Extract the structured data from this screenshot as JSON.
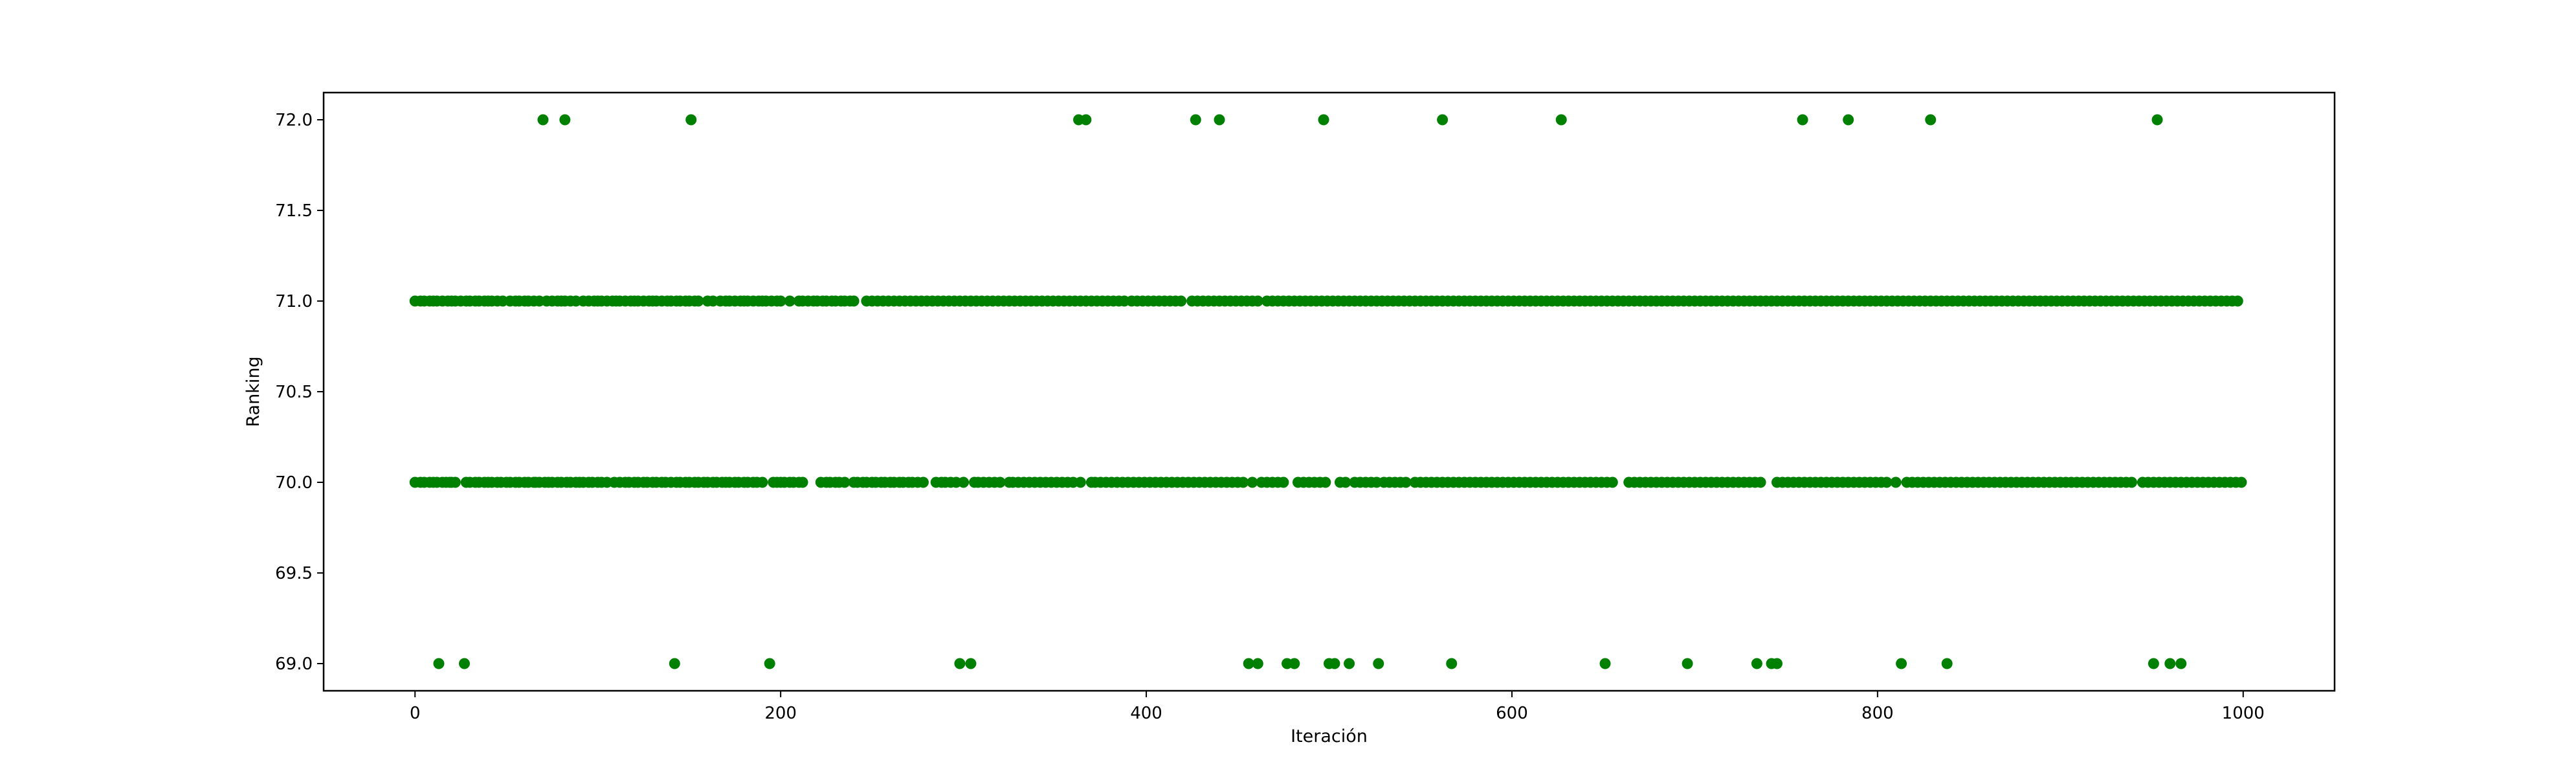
{
  "chart_data": {
    "type": "scatter",
    "title": "",
    "xlabel": "Iteración",
    "ylabel": "Ranking",
    "xlim": [
      -50,
      1050
    ],
    "ylim": [
      68.85,
      72.15
    ],
    "xticks": [
      0,
      200,
      400,
      600,
      800,
      1000
    ],
    "yticks": [
      69.0,
      69.5,
      70.0,
      70.5,
      71.0,
      71.5,
      72.0
    ],
    "ytick_labels": [
      "69.0",
      "69.5",
      "70.0",
      "70.5",
      "71.0",
      "71.5",
      "72.0"
    ],
    "grid": false,
    "marker_color": "#008000",
    "y_levels": [
      69,
      70,
      71,
      72
    ],
    "points": {
      "72": [
        70,
        82,
        151,
        363,
        367,
        427,
        440,
        497,
        562,
        627,
        759,
        784,
        829,
        953
      ],
      "69": [
        13,
        27,
        142,
        194,
        298,
        304,
        456,
        461,
        477,
        481,
        500,
        503,
        511,
        527,
        567,
        651,
        696,
        734,
        742,
        745,
        813,
        838,
        951,
        960,
        966
      ],
      "70": [
        0,
        3,
        5,
        8,
        10,
        12,
        15,
        17,
        19,
        20,
        22,
        28,
        30,
        33,
        35,
        38,
        40,
        42,
        45,
        47,
        50,
        52,
        55,
        57,
        60,
        62,
        65,
        66,
        68,
        71,
        73,
        75,
        78,
        80,
        83,
        85,
        88,
        90,
        92,
        95,
        97,
        100,
        102,
        105,
        109,
        112,
        115,
        117,
        120,
        122,
        125,
        127,
        130,
        132,
        135,
        137,
        140,
        143,
        145,
        148,
        150,
        153,
        155,
        158,
        160,
        163,
        165,
        168,
        170,
        172,
        175,
        177,
        180,
        182,
        185,
        187,
        190,
        196,
        198,
        200,
        202,
        205,
        207,
        210,
        212,
        222,
        225,
        227,
        230,
        232,
        235,
        240,
        242,
        245,
        247,
        250,
        252,
        255,
        257,
        260,
        262,
        265,
        267,
        270,
        272,
        275,
        278,
        285,
        288,
        290,
        293,
        296,
        300,
        306,
        308,
        311,
        314,
        317,
        320,
        325,
        327,
        330,
        333,
        336,
        339,
        342,
        345,
        348,
        351,
        354,
        357,
        360,
        364,
        370,
        372,
        375,
        378,
        381,
        384,
        387,
        390,
        393,
        396,
        399,
        402,
        405,
        408,
        411,
        414,
        417,
        420,
        423,
        426,
        429,
        432,
        435,
        438,
        441,
        444,
        447,
        450,
        453,
        458,
        463,
        466,
        469,
        472,
        475,
        483,
        486,
        489,
        492,
        495,
        498,
        506,
        509,
        514,
        517,
        520,
        523,
        526,
        530,
        533,
        536,
        539,
        542,
        547,
        550,
        553,
        556,
        559,
        562,
        565,
        568,
        571,
        574,
        577,
        580,
        583,
        586,
        589,
        592,
        595,
        598,
        601,
        604,
        607,
        610,
        613,
        616,
        619,
        622,
        625,
        628,
        631,
        634,
        637,
        640,
        643,
        646,
        649,
        652,
        655,
        664,
        667,
        670,
        673,
        676,
        679,
        682,
        685,
        688,
        691,
        694,
        697,
        700,
        703,
        706,
        709,
        712,
        715,
        718,
        721,
        724,
        727,
        730,
        733,
        736,
        745,
        748,
        751,
        754,
        757,
        760,
        763,
        766,
        769,
        772,
        775,
        778,
        781,
        784,
        787,
        790,
        793,
        796,
        799,
        802,
        805,
        810,
        816,
        819,
        822,
        825,
        828,
        831,
        834,
        837,
        840,
        843,
        846,
        849,
        852,
        855,
        858,
        861,
        864,
        867,
        870,
        873,
        876,
        879,
        882,
        885,
        888,
        891,
        894,
        897,
        900,
        903,
        906,
        909,
        912,
        915,
        918,
        921,
        924,
        927,
        930,
        933,
        936,
        939,
        945,
        948,
        951,
        954,
        957,
        960,
        963,
        966,
        969,
        972,
        975,
        978,
        981,
        984,
        987,
        990,
        993,
        996,
        999
      ],
      "71": [
        0,
        3,
        5,
        8,
        10,
        12,
        15,
        18,
        20,
        22,
        25,
        28,
        30,
        33,
        35,
        38,
        40,
        42,
        45,
        48,
        52,
        55,
        57,
        60,
        62,
        65,
        68,
        72,
        75,
        78,
        80,
        82,
        85,
        88,
        92,
        95,
        98,
        100,
        102,
        105,
        108,
        110,
        112,
        115,
        118,
        120,
        122,
        125,
        128,
        130,
        132,
        135,
        138,
        140,
        143,
        145,
        148,
        150,
        153,
        155,
        160,
        163,
        167,
        170,
        172,
        175,
        178,
        180,
        182,
        185,
        188,
        190,
        192,
        195,
        198,
        200,
        205,
        210,
        212,
        215,
        218,
        220,
        223,
        225,
        228,
        230,
        233,
        235,
        238,
        240,
        247,
        250,
        253,
        256,
        259,
        262,
        265,
        268,
        271,
        274,
        277,
        280,
        283,
        286,
        289,
        292,
        295,
        298,
        301,
        304,
        307,
        310,
        313,
        316,
        319,
        322,
        325,
        328,
        331,
        334,
        337,
        340,
        343,
        346,
        349,
        352,
        355,
        358,
        361,
        364,
        367,
        370,
        373,
        376,
        379,
        382,
        385,
        388,
        392,
        395,
        398,
        401,
        404,
        407,
        410,
        413,
        416,
        419,
        425,
        428,
        431,
        434,
        437,
        440,
        443,
        446,
        449,
        452,
        455,
        458,
        461,
        466,
        469,
        472,
        475,
        478,
        481,
        484,
        487,
        490,
        493,
        496,
        499,
        502,
        505,
        508,
        511,
        514,
        517,
        520,
        523,
        526,
        529,
        532,
        535,
        538,
        541,
        544,
        547,
        550,
        553,
        556,
        559,
        562,
        565,
        568,
        571,
        574,
        577,
        580,
        583,
        586,
        589,
        592,
        595,
        598,
        601,
        604,
        607,
        610,
        613,
        616,
        619,
        622,
        625,
        628,
        631,
        634,
        637,
        640,
        643,
        646,
        649,
        652,
        655,
        658,
        661,
        664,
        667,
        670,
        673,
        676,
        679,
        682,
        685,
        688,
        691,
        694,
        697,
        700,
        703,
        706,
        709,
        712,
        715,
        718,
        721,
        724,
        727,
        730,
        733,
        736,
        739,
        742,
        745,
        748,
        751,
        754,
        757,
        760,
        763,
        766,
        769,
        772,
        775,
        778,
        781,
        784,
        787,
        790,
        793,
        796,
        799,
        802,
        805,
        808,
        811,
        814,
        817,
        820,
        823,
        826,
        829,
        832,
        835,
        838,
        841,
        844,
        847,
        850,
        853,
        856,
        859,
        862,
        865,
        868,
        871,
        874,
        877,
        880,
        883,
        886,
        889,
        892,
        895,
        898,
        901,
        904,
        907,
        910,
        913,
        916,
        919,
        922,
        925,
        928,
        931,
        934,
        937,
        940,
        943,
        946,
        949,
        952,
        955,
        958,
        961,
        964,
        967,
        970,
        973,
        976,
        979,
        982,
        985,
        988,
        991,
        994,
        997
      ]
    }
  }
}
